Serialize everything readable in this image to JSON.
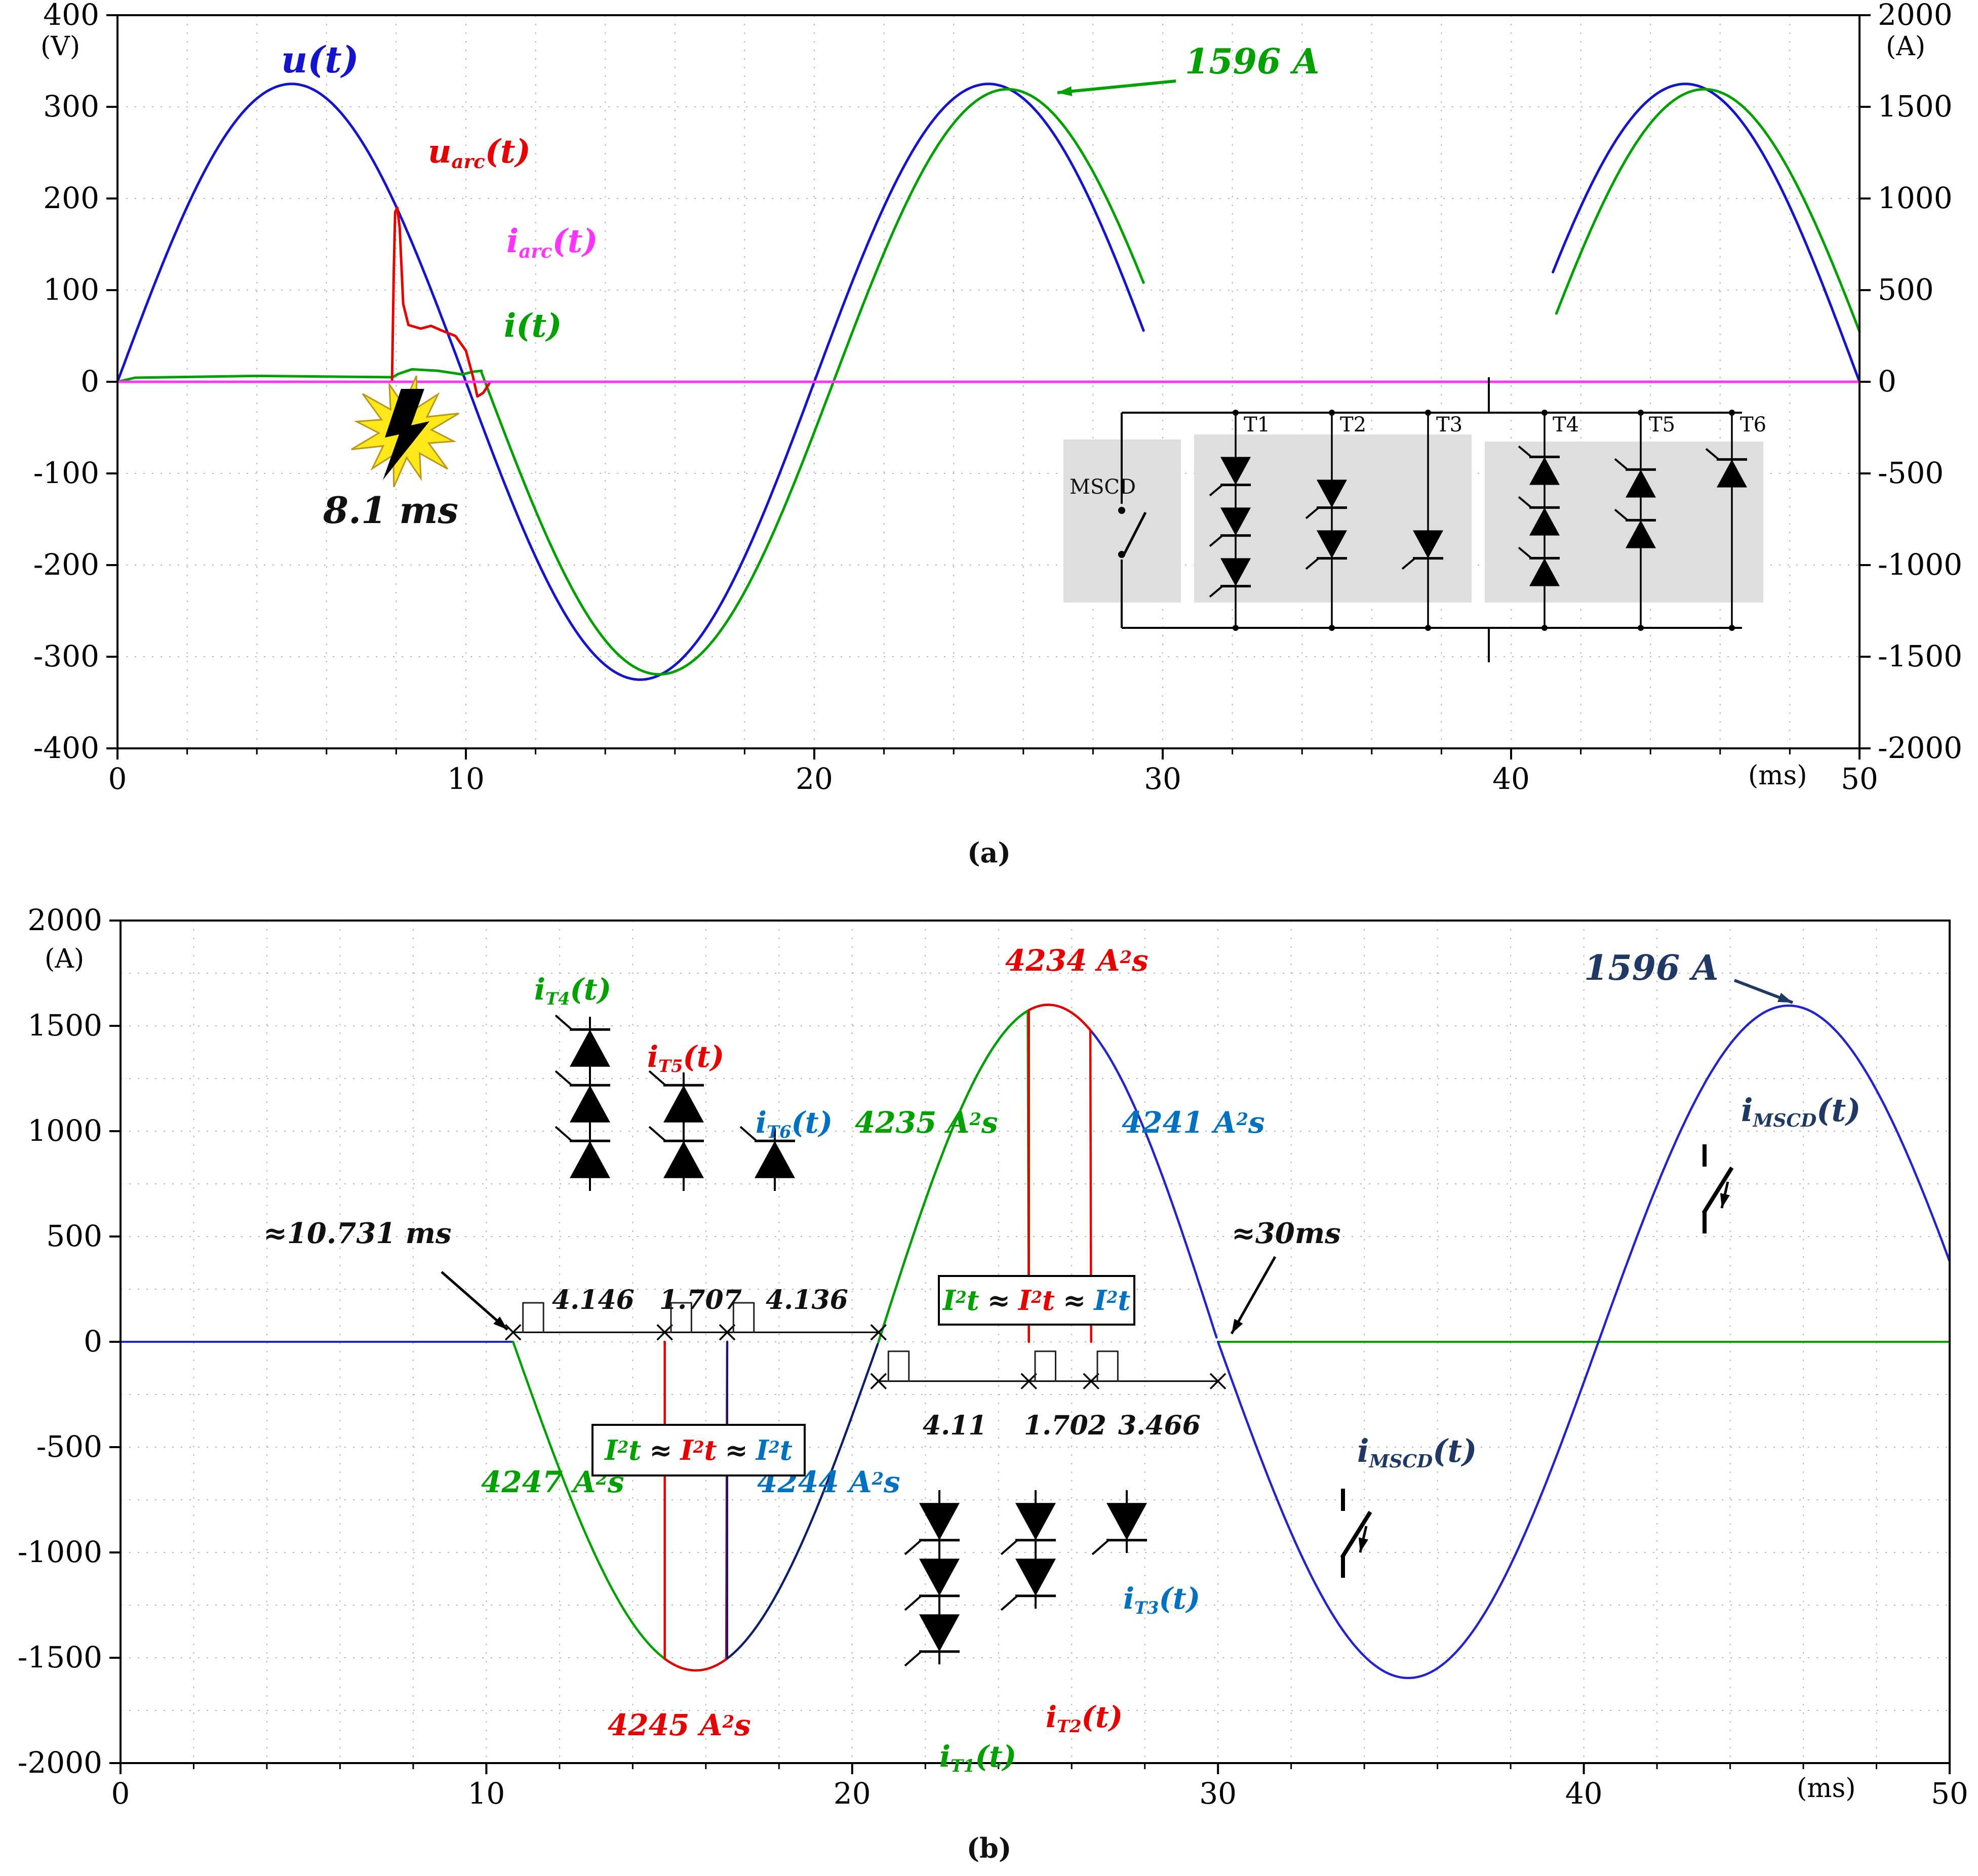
{
  "figure": {
    "caption_a": "(a)",
    "caption_b": "(b)"
  },
  "labels": {
    "u": {
      "base": "u",
      "rest": "(t)"
    },
    "uarc": {
      "base": "u",
      "sub": "arc",
      "rest": "(t)"
    },
    "iarc": {
      "base": "i",
      "sub": "arc",
      "rest": "(t)"
    },
    "i": {
      "base": "i",
      "rest": "(t)"
    },
    "iT1": {
      "base": "i",
      "sub": "T1",
      "rest": "(t)"
    },
    "iT2": {
      "base": "i",
      "sub": "T2",
      "rest": "(t)"
    },
    "iT3": {
      "base": "i",
      "sub": "T3",
      "rest": "(t)"
    },
    "iT4": {
      "base": "i",
      "sub": "T4",
      "rest": "(t)"
    },
    "iT5": {
      "base": "i",
      "sub": "T5",
      "rest": "(t)"
    },
    "iT6": {
      "base": "i",
      "sub": "T6",
      "rest": "(t)"
    },
    "imscd": {
      "base": "i",
      "sub": "MSCD",
      "rest": "(t)"
    },
    "i2t": {
      "base": "I",
      "sup": "2",
      "rest": "t"
    },
    "approx": "≈",
    "unit_a2s": {
      "pre": " A",
      "sup": "2",
      "suf": "s"
    }
  },
  "inset_a": {
    "mscd": "MSCD",
    "thyristors": [
      "T1",
      "T2",
      "T3",
      "T4",
      "T5",
      "T6"
    ],
    "series_counts": [
      3,
      2,
      1,
      3,
      2,
      1
    ]
  },
  "chart_data": [
    {
      "type": "line",
      "xlabel": "(ms)",
      "x_range": [
        0,
        50
      ],
      "x_ticks": [
        "0",
        "10",
        "20",
        "30",
        "40",
        "50"
      ],
      "ylabel_left": "(V)",
      "ylim_left": [
        -400,
        400
      ],
      "y_ticks_left": [
        "400",
        "300",
        "200",
        "100",
        "0",
        "-100",
        "-200",
        "-300",
        "-400"
      ],
      "ylabel_right": "(A)",
      "ylim_right": [
        -2000,
        2000
      ],
      "y_ticks_right": [
        "2000",
        "1500",
        "1000",
        "500",
        "0",
        "-500",
        "-1000",
        "-1500",
        "-2000"
      ],
      "grid": "dotted",
      "series": [
        {
          "name": "u(t)",
          "color": "#1414cc",
          "axis": "V",
          "shape": "sine",
          "amplitude_V": 325,
          "period_ms": 20,
          "phase_ms": 0,
          "visible_t_ms": [
            [
              0,
              29.5
            ],
            [
              41.2,
              50
            ]
          ]
        },
        {
          "name": "uarc(t)",
          "color": "#e60000",
          "axis": "V",
          "shape": "points",
          "points_ms_V": [
            [
              0,
              0
            ],
            [
              7.88,
              0
            ],
            [
              7.93,
              120
            ],
            [
              7.97,
              185
            ],
            [
              8.03,
              190
            ],
            [
              8.1,
              168
            ],
            [
              8.2,
              85
            ],
            [
              8.35,
              62
            ],
            [
              8.7,
              58
            ],
            [
              9.0,
              61
            ],
            [
              9.3,
              56
            ],
            [
              9.7,
              50
            ],
            [
              10.0,
              34
            ],
            [
              10.2,
              6
            ],
            [
              10.33,
              -16
            ],
            [
              10.5,
              -12
            ],
            [
              10.7,
              0
            ],
            [
              50,
              0
            ]
          ]
        },
        {
          "name": "iarc(t)",
          "color": "#ff33ff",
          "axis": "A",
          "shape": "points",
          "points_ms_A": [
            [
              0,
              0
            ],
            [
              50,
              0
            ]
          ]
        },
        {
          "name": "i(t)",
          "color": "#00a000",
          "axis": "A",
          "shape": "piecewise",
          "pre_fault_points_ms_A": [
            [
              0,
              0
            ],
            [
              0.5,
              22
            ],
            [
              4,
              32
            ],
            [
              7.9,
              25
            ],
            [
              8.05,
              42
            ],
            [
              8.45,
              68
            ],
            [
              9.2,
              60
            ],
            [
              9.9,
              40
            ],
            [
              10.2,
              55
            ],
            [
              10.45,
              60
            ]
          ],
          "sine": {
            "amplitude_A": 1596,
            "period_ms": 20,
            "phase_ms": 0.55
          },
          "sine_t_ms": [
            [
              10.45,
              29.5
            ],
            [
              41.3,
              50
            ]
          ],
          "peak_A": 1596,
          "peak_t_ms": 25.55
        }
      ],
      "annotations": {
        "peak_current": "1596 A",
        "fault_time": "8.1 ms"
      }
    },
    {
      "type": "line",
      "xlabel": "(ms)",
      "x_range": [
        0,
        50
      ],
      "x_ticks": [
        "0",
        "10",
        "20",
        "30",
        "40",
        "50"
      ],
      "ylabel": "(A)",
      "ylim": [
        -2000,
        2000
      ],
      "y_ticks": [
        "2000",
        "1500",
        "1000",
        "500",
        "0",
        "-500",
        "-1000",
        "-1500",
        "-2000"
      ],
      "grid": "dotted",
      "series": [
        {
          "name": "iT1(t)",
          "color": "#00a000",
          "conducts_ms": [
            10.731,
            14.877
          ],
          "i2t_A2s": 4247
        },
        {
          "name": "iT2(t)",
          "color": "#e60000",
          "conducts_ms": [
            14.877,
            16.584
          ],
          "i2t_A2s": 4245
        },
        {
          "name": "iT3(t)",
          "color": "#0070c0",
          "conducts_ms": [
            16.584,
            20.72
          ],
          "i2t_A2s": 4244
        },
        {
          "name": "iT4(t)",
          "color": "#00a000",
          "conducts_ms": [
            20.72,
            24.83
          ],
          "i2t_A2s": 4235
        },
        {
          "name": "iT5(t)",
          "color": "#e60000",
          "conducts_ms": [
            24.83,
            26.532
          ],
          "i2t_A2s": 4234
        },
        {
          "name": "iT6(t)",
          "color": "#0070c0",
          "conducts_ms": [
            26.532,
            29.998
          ],
          "i2t_A2s": 4241
        },
        {
          "name": "iMSCD(t)",
          "color": "#2323cc",
          "shape": "sine_after_takeover",
          "start_ms": 30,
          "peak_A": 1596,
          "halfperiod_ms": 10.4
        }
      ],
      "neg_halfwave": {
        "t_ms": [
          10.731,
          20.72
        ],
        "peak_A": -1560
      },
      "pos_halfwave": {
        "t_ms": [
          20.72,
          29.998
        ],
        "peak_A": 1600
      },
      "conduction_intervals_ms": {
        "neg": [
          4.146,
          1.707,
          4.136
        ],
        "pos": [
          4.11,
          1.702,
          3.466
        ]
      },
      "i2t": {
        "t1": 4247,
        "t2": 4245,
        "t3": 4244,
        "t4": 4235,
        "t5": 4234,
        "t6": 4241
      },
      "thyristor_symbol_counts": {
        "upper": [
          3,
          2,
          1
        ],
        "lower": [
          3,
          2,
          1
        ]
      },
      "annotations": {
        "start_label": "≈10.731 ms",
        "takeover_label": "≈30ms",
        "peak_label": "1596 A"
      }
    }
  ]
}
